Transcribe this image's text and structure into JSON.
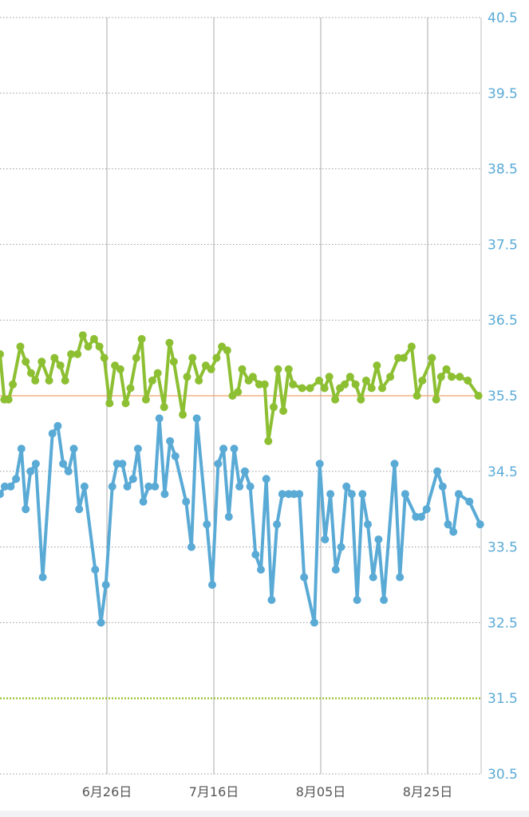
{
  "chart_data": {
    "type": "line",
    "y_ticks": [
      "40.5",
      "39.5",
      "38.5",
      "37.5",
      "36.5",
      "35.5",
      "34.5",
      "33.5",
      "32.5",
      "31.5",
      "30.5"
    ],
    "ylim": [
      30.5,
      40.5
    ],
    "x_ticks": [
      {
        "day": 20,
        "label": "6月26日"
      },
      {
        "day": 40,
        "label": "7月16日"
      },
      {
        "day": 60,
        "label": "8月05日"
      },
      {
        "day": 80,
        "label": "8月25日"
      }
    ],
    "xlim": [
      0,
      90
    ],
    "reference_lines": [
      {
        "value": 35.5,
        "color": "#f2a06a",
        "style": "solid"
      },
      {
        "value": 31.5,
        "color": "#9cc43a",
        "style": "dotted"
      }
    ],
    "series": [
      {
        "color": "#8dbf32",
        "points": [
          [
            0,
            36.05
          ],
          [
            0.8,
            35.45
          ],
          [
            1.6,
            35.45
          ],
          [
            2.4,
            35.65
          ],
          [
            3.8,
            36.15
          ],
          [
            4.8,
            35.95
          ],
          [
            5.8,
            35.8
          ],
          [
            6.6,
            35.7
          ],
          [
            7.8,
            35.95
          ],
          [
            9.2,
            35.7
          ],
          [
            10.2,
            36.0
          ],
          [
            11.3,
            35.9
          ],
          [
            12.2,
            35.7
          ],
          [
            13.3,
            36.05
          ],
          [
            14.5,
            36.05
          ],
          [
            15.5,
            36.3
          ],
          [
            16.5,
            36.15
          ],
          [
            17.6,
            36.25
          ],
          [
            18.6,
            36.15
          ],
          [
            19.5,
            36.0
          ],
          [
            20.5,
            35.4
          ],
          [
            21.5,
            35.9
          ],
          [
            22.5,
            35.85
          ],
          [
            23.5,
            35.4
          ],
          [
            24.4,
            35.6
          ],
          [
            25.5,
            36.0
          ],
          [
            26.5,
            36.25
          ],
          [
            27.3,
            35.45
          ],
          [
            28.5,
            35.7
          ],
          [
            29.5,
            35.8
          ],
          [
            30.7,
            35.35
          ],
          [
            31.7,
            36.2
          ],
          [
            32.5,
            35.95
          ],
          [
            34.2,
            35.25
          ],
          [
            35.0,
            35.75
          ],
          [
            36.0,
            36.0
          ],
          [
            37.2,
            35.7
          ],
          [
            38.5,
            35.9
          ],
          [
            39.5,
            35.85
          ],
          [
            40.5,
            36.0
          ],
          [
            41.5,
            36.15
          ],
          [
            42.5,
            36.1
          ],
          [
            43.5,
            35.5
          ],
          [
            44.5,
            35.55
          ],
          [
            45.3,
            35.85
          ],
          [
            46.5,
            35.7
          ],
          [
            47.3,
            35.75
          ],
          [
            48.5,
            35.65
          ],
          [
            49.5,
            35.65
          ],
          [
            50.2,
            34.9
          ],
          [
            51.2,
            35.35
          ],
          [
            52.0,
            35.85
          ],
          [
            53.0,
            35.3
          ],
          [
            54.0,
            35.85
          ],
          [
            54.8,
            35.65
          ],
          [
            56.5,
            35.6
          ],
          [
            58.0,
            35.6
          ],
          [
            59.7,
            35.7
          ],
          [
            60.7,
            35.6
          ],
          [
            61.6,
            35.75
          ],
          [
            62.7,
            35.45
          ],
          [
            63.6,
            35.6
          ],
          [
            64.5,
            35.65
          ],
          [
            65.5,
            35.75
          ],
          [
            66.5,
            35.65
          ],
          [
            67.5,
            35.45
          ],
          [
            68.5,
            35.7
          ],
          [
            69.5,
            35.6
          ],
          [
            70.5,
            35.9
          ],
          [
            71.5,
            35.6
          ],
          [
            73.0,
            35.75
          ],
          [
            74.5,
            36.0
          ],
          [
            75.5,
            36.0
          ],
          [
            77.0,
            36.15
          ],
          [
            78.0,
            35.5
          ],
          [
            79.0,
            35.7
          ],
          [
            80.8,
            36.0
          ],
          [
            81.6,
            35.45
          ],
          [
            82.5,
            35.75
          ],
          [
            83.5,
            35.85
          ],
          [
            84.5,
            35.75
          ],
          [
            86.0,
            35.75
          ],
          [
            87.5,
            35.7
          ],
          [
            89.5,
            35.5
          ]
        ]
      },
      {
        "color": "#5aaad6",
        "points": [
          [
            0,
            34.2
          ],
          [
            0.9,
            34.3
          ],
          [
            2.0,
            34.3
          ],
          [
            3.0,
            34.4
          ],
          [
            4.0,
            34.8
          ],
          [
            4.8,
            34.0
          ],
          [
            5.7,
            34.5
          ],
          [
            6.7,
            34.6
          ],
          [
            8.0,
            33.1
          ],
          [
            9.8,
            35.0
          ],
          [
            10.8,
            35.1
          ],
          [
            11.8,
            34.6
          ],
          [
            12.8,
            34.5
          ],
          [
            13.8,
            34.8
          ],
          [
            14.8,
            34.0
          ],
          [
            15.8,
            34.3
          ],
          [
            17.8,
            33.2
          ],
          [
            18.9,
            32.5
          ],
          [
            19.8,
            33.0
          ],
          [
            21.0,
            34.3
          ],
          [
            21.9,
            34.6
          ],
          [
            22.9,
            34.6
          ],
          [
            23.8,
            34.3
          ],
          [
            24.9,
            34.4
          ],
          [
            25.8,
            34.8
          ],
          [
            26.8,
            34.1
          ],
          [
            27.8,
            34.3
          ],
          [
            29.0,
            34.3
          ],
          [
            29.8,
            35.2
          ],
          [
            30.8,
            34.2
          ],
          [
            31.8,
            34.9
          ],
          [
            32.8,
            34.7
          ],
          [
            34.8,
            34.1
          ],
          [
            35.8,
            33.5
          ],
          [
            36.8,
            35.2
          ],
          [
            38.7,
            33.8
          ],
          [
            39.7,
            33.0
          ],
          [
            40.8,
            34.6
          ],
          [
            41.8,
            34.8
          ],
          [
            42.8,
            33.9
          ],
          [
            43.8,
            34.8
          ],
          [
            44.8,
            34.3
          ],
          [
            45.8,
            34.5
          ],
          [
            46.8,
            34.3
          ],
          [
            47.8,
            33.4
          ],
          [
            48.8,
            33.2
          ],
          [
            49.8,
            34.4
          ],
          [
            50.8,
            32.8
          ],
          [
            51.8,
            33.8
          ],
          [
            52.8,
            34.2
          ],
          [
            54.0,
            34.2
          ],
          [
            55.0,
            34.2
          ],
          [
            56.0,
            34.2
          ],
          [
            56.9,
            33.1
          ],
          [
            58.8,
            32.5
          ],
          [
            59.8,
            34.6
          ],
          [
            60.8,
            33.6
          ],
          [
            61.8,
            34.2
          ],
          [
            62.8,
            33.2
          ],
          [
            63.8,
            33.5
          ],
          [
            64.8,
            34.3
          ],
          [
            65.8,
            34.2
          ],
          [
            66.8,
            32.8
          ],
          [
            67.8,
            34.2
          ],
          [
            68.8,
            33.8
          ],
          [
            69.8,
            33.1
          ],
          [
            70.8,
            33.6
          ],
          [
            71.8,
            32.8
          ],
          [
            73.8,
            34.6
          ],
          [
            74.8,
            33.1
          ],
          [
            75.8,
            34.2
          ],
          [
            77.8,
            33.9
          ],
          [
            78.8,
            33.9
          ],
          [
            79.8,
            34.0
          ],
          [
            81.8,
            34.5
          ],
          [
            82.8,
            34.3
          ],
          [
            83.8,
            33.8
          ],
          [
            84.8,
            33.7
          ],
          [
            85.8,
            34.2
          ],
          [
            87.8,
            34.1
          ],
          [
            89.8,
            33.8
          ]
        ]
      }
    ],
    "grid": true
  }
}
